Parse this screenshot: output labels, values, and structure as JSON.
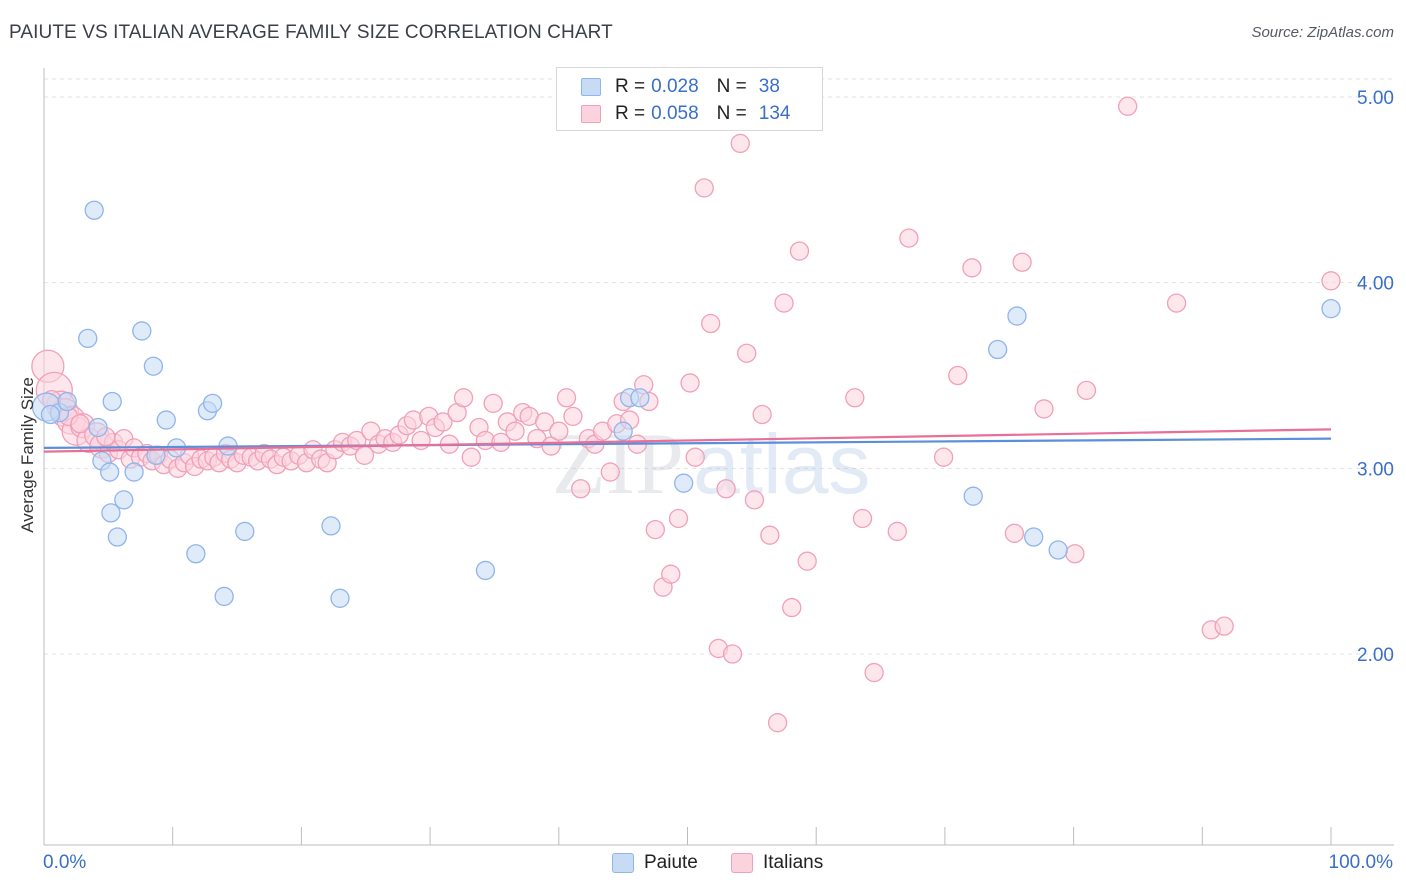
{
  "header": {
    "title": "PAIUTE VS ITALIAN AVERAGE FAMILY SIZE CORRELATION CHART",
    "source": "Source: ZipAtlas.com"
  },
  "legend": {
    "rows": [
      {
        "r_label": "R =",
        "r_value": "0.028",
        "n_label": "N =",
        "n_value": "38",
        "color": "#8fb5ea",
        "fill": "#c7dbf5"
      },
      {
        "r_label": "R =",
        "r_value": "0.058",
        "n_label": "N =",
        "n_value": "134",
        "color": "#f0a0b8",
        "fill": "#fbd3df"
      }
    ]
  },
  "bottom_legend": {
    "items": [
      {
        "label": "Paiute",
        "color": "#8fb5ea",
        "fill": "#c7dbf5"
      },
      {
        "label": "Italians",
        "color": "#f0a0b8",
        "fill": "#fbd3df"
      }
    ]
  },
  "watermark": {
    "zip": "ZIP",
    "atlas": "atlas"
  },
  "chart_data": {
    "type": "scatter",
    "title": "PAIUTE VS ITALIAN AVERAGE FAMILY SIZE CORRELATION CHART",
    "xlabel": "",
    "ylabel": "Average Family Size",
    "x_tick_labels": [
      "0.0%",
      "100.0%"
    ],
    "y_ticks": [
      2.0,
      3.0,
      4.0,
      5.0
    ],
    "y_tick_labels": [
      "2.00",
      "3.00",
      "4.00",
      "5.00"
    ],
    "xlim": [
      0,
      100
    ],
    "ylim": [
      1.0,
      5.1
    ],
    "grid": true,
    "legend_position": "top-center",
    "series": [
      {
        "name": "Paiute",
        "color": "#5b8fd9",
        "fill": "#c7dbf5",
        "stroke": "#8fb5ea",
        "trend": {
          "x": [
            0,
            100
          ],
          "y": [
            3.11,
            3.16
          ]
        },
        "points": [
          [
            0.2,
            3.33
          ],
          [
            1.2,
            3.3
          ],
          [
            1.8,
            3.36
          ],
          [
            3.4,
            3.7
          ],
          [
            3.9,
            4.39
          ],
          [
            4.2,
            3.22
          ],
          [
            4.5,
            3.04
          ],
          [
            5.2,
            2.76
          ],
          [
            5.1,
            2.98
          ],
          [
            5.3,
            3.36
          ],
          [
            5.7,
            2.63
          ],
          [
            6.2,
            2.83
          ],
          [
            7.0,
            2.98
          ],
          [
            7.6,
            3.74
          ],
          [
            8.5,
            3.55
          ],
          [
            8.7,
            3.07
          ],
          [
            9.5,
            3.26
          ],
          [
            10.3,
            3.11
          ],
          [
            11.8,
            2.54
          ],
          [
            12.7,
            3.31
          ],
          [
            13.1,
            3.35
          ],
          [
            14.0,
            2.31
          ],
          [
            14.3,
            3.12
          ],
          [
            15.6,
            2.66
          ],
          [
            22.3,
            2.69
          ],
          [
            23.0,
            2.3
          ],
          [
            34.3,
            2.45
          ],
          [
            45.0,
            3.2
          ],
          [
            45.5,
            3.38
          ],
          [
            46.3,
            3.38
          ],
          [
            49.7,
            2.92
          ],
          [
            72.2,
            2.85
          ],
          [
            74.1,
            3.64
          ],
          [
            75.6,
            3.82
          ],
          [
            76.9,
            2.63
          ],
          [
            78.8,
            2.56
          ],
          [
            100.0,
            3.86
          ],
          [
            0.5,
            3.29
          ]
        ],
        "sizes": [
          14,
          9,
          9,
          9,
          9,
          9,
          9,
          9,
          9,
          9,
          9,
          9,
          9,
          9,
          9,
          9,
          9,
          9,
          9,
          9,
          9,
          9,
          9,
          9,
          9,
          9,
          9,
          9,
          9,
          9,
          9,
          9,
          9,
          9,
          9,
          9,
          9,
          9
        ]
      },
      {
        "name": "Italians",
        "color": "#e86f97",
        "fill": "#fbd3df",
        "stroke": "#f0a0b8",
        "trend": {
          "x": [
            0,
            100
          ],
          "y": [
            3.09,
            3.21
          ]
        },
        "points": [
          [
            0.3,
            3.55
          ],
          [
            0.8,
            3.42
          ],
          [
            1.3,
            3.34
          ],
          [
            1.6,
            3.3
          ],
          [
            2.1,
            3.26
          ],
          [
            2.5,
            3.2
          ],
          [
            3.0,
            3.23
          ],
          [
            3.5,
            3.15
          ],
          [
            4.1,
            3.18
          ],
          [
            4.5,
            3.12
          ],
          [
            5.0,
            3.08
          ],
          [
            5.4,
            3.14
          ],
          [
            5.8,
            3.1
          ],
          [
            6.2,
            3.16
          ],
          [
            6.7,
            3.05
          ],
          [
            7.0,
            3.11
          ],
          [
            7.5,
            3.06
          ],
          [
            8.0,
            3.08
          ],
          [
            8.4,
            3.04
          ],
          [
            8.9,
            3.07
          ],
          [
            9.3,
            3.02
          ],
          [
            9.8,
            3.05
          ],
          [
            10.4,
            3.0
          ],
          [
            10.9,
            3.03
          ],
          [
            11.3,
            3.07
          ],
          [
            11.7,
            3.01
          ],
          [
            12.2,
            3.05
          ],
          [
            12.7,
            3.04
          ],
          [
            13.2,
            3.06
          ],
          [
            13.6,
            3.03
          ],
          [
            14.1,
            3.08
          ],
          [
            14.5,
            3.05
          ],
          [
            15.0,
            3.03
          ],
          [
            15.5,
            3.07
          ],
          [
            16.1,
            3.06
          ],
          [
            16.6,
            3.04
          ],
          [
            17.1,
            3.08
          ],
          [
            17.6,
            3.05
          ],
          [
            18.1,
            3.02
          ],
          [
            18.6,
            3.06
          ],
          [
            19.2,
            3.04
          ],
          [
            19.8,
            3.07
          ],
          [
            20.4,
            3.03
          ],
          [
            20.9,
            3.1
          ],
          [
            21.5,
            3.05
          ],
          [
            22.0,
            3.03
          ],
          [
            22.6,
            3.1
          ],
          [
            23.2,
            3.14
          ],
          [
            23.8,
            3.12
          ],
          [
            24.3,
            3.15
          ],
          [
            24.9,
            3.07
          ],
          [
            25.4,
            3.2
          ],
          [
            26.0,
            3.13
          ],
          [
            26.5,
            3.16
          ],
          [
            27.1,
            3.14
          ],
          [
            27.6,
            3.18
          ],
          [
            28.2,
            3.23
          ],
          [
            28.7,
            3.26
          ],
          [
            29.3,
            3.15
          ],
          [
            29.9,
            3.28
          ],
          [
            30.4,
            3.22
          ],
          [
            31.0,
            3.25
          ],
          [
            31.5,
            3.13
          ],
          [
            32.1,
            3.3
          ],
          [
            32.6,
            3.38
          ],
          [
            33.2,
            3.06
          ],
          [
            33.8,
            3.22
          ],
          [
            34.3,
            3.15
          ],
          [
            34.9,
            3.35
          ],
          [
            35.5,
            3.14
          ],
          [
            36.0,
            3.25
          ],
          [
            36.6,
            3.2
          ],
          [
            37.2,
            3.3
          ],
          [
            37.7,
            3.28
          ],
          [
            38.3,
            3.16
          ],
          [
            38.9,
            3.25
          ],
          [
            39.4,
            3.12
          ],
          [
            40.0,
            3.2
          ],
          [
            40.6,
            3.38
          ],
          [
            41.1,
            3.28
          ],
          [
            41.7,
            2.89
          ],
          [
            42.3,
            3.16
          ],
          [
            42.8,
            3.13
          ],
          [
            43.4,
            3.2
          ],
          [
            44.0,
            2.98
          ],
          [
            44.5,
            3.24
          ],
          [
            45.0,
            3.36
          ],
          [
            45.5,
            3.26
          ],
          [
            46.1,
            3.13
          ],
          [
            46.6,
            3.45
          ],
          [
            47.0,
            3.36
          ],
          [
            47.5,
            2.67
          ],
          [
            48.1,
            2.36
          ],
          [
            48.7,
            2.43
          ],
          [
            49.3,
            2.73
          ],
          [
            50.2,
            3.46
          ],
          [
            50.6,
            3.06
          ],
          [
            51.3,
            4.51
          ],
          [
            51.8,
            3.78
          ],
          [
            52.4,
            2.03
          ],
          [
            53.0,
            2.89
          ],
          [
            53.5,
            2.0
          ],
          [
            54.1,
            4.75
          ],
          [
            54.6,
            3.62
          ],
          [
            55.2,
            2.83
          ],
          [
            55.8,
            3.29
          ],
          [
            56.4,
            2.64
          ],
          [
            57.0,
            1.63
          ],
          [
            57.5,
            3.89
          ],
          [
            58.1,
            2.25
          ],
          [
            58.7,
            4.17
          ],
          [
            59.3,
            2.5
          ],
          [
            63.0,
            3.38
          ],
          [
            63.6,
            2.73
          ],
          [
            64.5,
            1.9
          ],
          [
            66.3,
            2.66
          ],
          [
            67.2,
            4.24
          ],
          [
            69.9,
            3.06
          ],
          [
            71.0,
            3.5
          ],
          [
            72.1,
            4.08
          ],
          [
            75.4,
            2.65
          ],
          [
            76.0,
            4.11
          ],
          [
            77.7,
            3.32
          ],
          [
            80.1,
            2.54
          ],
          [
            81.0,
            3.42
          ],
          [
            84.2,
            4.95
          ],
          [
            88.0,
            3.89
          ],
          [
            90.7,
            2.13
          ],
          [
            91.7,
            2.15
          ],
          [
            100.0,
            4.01
          ],
          [
            0.6,
            3.37
          ],
          [
            1.9,
            3.28
          ],
          [
            2.8,
            3.24
          ],
          [
            4.8,
            3.17
          ]
        ],
        "sizes": [
          16,
          18,
          14,
          14,
          14,
          14,
          12,
          12,
          12,
          12,
          9,
          9,
          9,
          9,
          9,
          9,
          9,
          9,
          9,
          9,
          9,
          9,
          9,
          9,
          9,
          9,
          9,
          9,
          9,
          9,
          9,
          9,
          9,
          9,
          9,
          9,
          9,
          9,
          9,
          9,
          9,
          9,
          9,
          9,
          9,
          9,
          9,
          9,
          9,
          9,
          9,
          9,
          9,
          9,
          9,
          9,
          9,
          9,
          9,
          9,
          9,
          9,
          9,
          9,
          9,
          9,
          9,
          9,
          9,
          9,
          9,
          9,
          9,
          9,
          9,
          9,
          9,
          9,
          9,
          9,
          9,
          9,
          9,
          9,
          9,
          9,
          9,
          9,
          9,
          9,
          9,
          9,
          9,
          9,
          9,
          9,
          9,
          9,
          9,
          9,
          9,
          9,
          9,
          9,
          9,
          9,
          9,
          9,
          9,
          9,
          9,
          9,
          9,
          9,
          9,
          9,
          9,
          9,
          9,
          9,
          9,
          9,
          9,
          9,
          9,
          9,
          9,
          9,
          9,
          9,
          9,
          9,
          9,
          9
        ]
      }
    ]
  }
}
